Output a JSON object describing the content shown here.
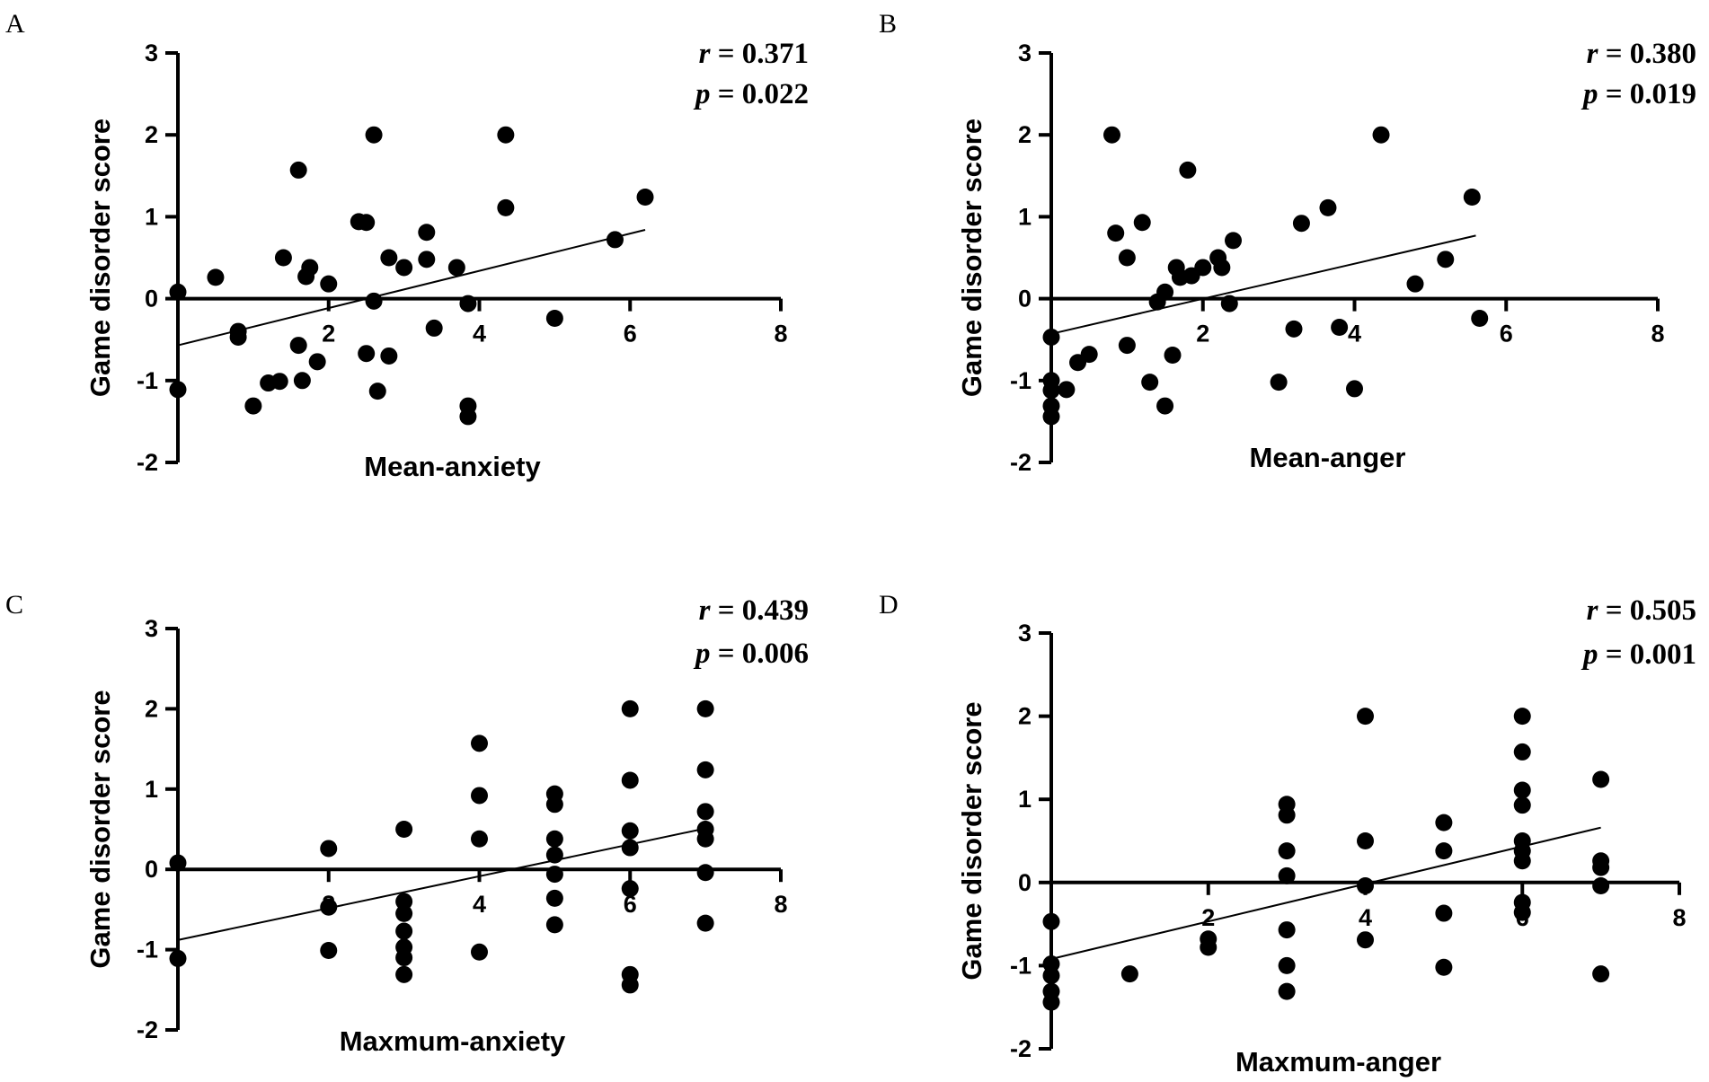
{
  "chart_data": [
    {
      "panel": "A",
      "type": "scatter",
      "xlabel": "Mean-anxiety",
      "ylabel": "Game disorder score",
      "xlim": [
        0,
        8
      ],
      "ylim": [
        -2,
        3
      ],
      "xticks": [
        "2",
        "4",
        "6",
        "8"
      ],
      "yticks": [
        "-2",
        "-1",
        "0",
        "1",
        "2",
        "3"
      ],
      "stats": {
        "r_label": "r",
        "r_value": "= 0.371",
        "p_label": "p",
        "p_value": "= 0.022"
      },
      "fit": {
        "x": [
          0,
          6.2
        ],
        "y": [
          -0.57,
          0.84
        ]
      },
      "points": [
        [
          0,
          0.08
        ],
        [
          0,
          -1.11
        ],
        [
          0.5,
          0.26
        ],
        [
          0.8,
          -0.4
        ],
        [
          0.8,
          -0.47
        ],
        [
          1.0,
          -1.31
        ],
        [
          1.2,
          -1.03
        ],
        [
          1.35,
          -1.01
        ],
        [
          1.4,
          0.5
        ],
        [
          1.6,
          -0.57
        ],
        [
          1.6,
          1.57
        ],
        [
          1.65,
          -1.0
        ],
        [
          1.7,
          0.27
        ],
        [
          1.75,
          0.38
        ],
        [
          1.85,
          -0.77
        ],
        [
          2.0,
          0.18
        ],
        [
          2.4,
          0.94
        ],
        [
          2.5,
          0.93
        ],
        [
          2.5,
          -0.67
        ],
        [
          2.6,
          2.0
        ],
        [
          2.6,
          -0.03
        ],
        [
          2.65,
          -1.13
        ],
        [
          2.8,
          -0.7
        ],
        [
          2.8,
          0.5
        ],
        [
          3.0,
          0.38
        ],
        [
          3.3,
          0.81
        ],
        [
          3.3,
          0.48
        ],
        [
          3.4,
          -0.36
        ],
        [
          3.7,
          0.38
        ],
        [
          3.85,
          -0.06
        ],
        [
          3.85,
          -1.31
        ],
        [
          3.85,
          -1.44
        ],
        [
          4.35,
          2.0
        ],
        [
          4.35,
          1.11
        ],
        [
          5.0,
          -0.24
        ],
        [
          5.8,
          0.72
        ],
        [
          6.2,
          1.24
        ]
      ]
    },
    {
      "panel": "B",
      "type": "scatter",
      "xlabel": "Mean-anger",
      "ylabel": "Game disorder score",
      "xlim": [
        0,
        8
      ],
      "ylim": [
        -2,
        3
      ],
      "xticks": [
        "2",
        "4",
        "6",
        "8"
      ],
      "yticks": [
        "-2",
        "-1",
        "0",
        "1",
        "2",
        "3"
      ],
      "stats": {
        "r_label": "r",
        "r_value": "= 0.380",
        "p_label": "p",
        "p_value": "= 0.019"
      },
      "fit": {
        "x": [
          0,
          5.6
        ],
        "y": [
          -0.43,
          0.77
        ]
      },
      "points": [
        [
          0,
          -0.47
        ],
        [
          0,
          -1.0
        ],
        [
          0,
          -1.12
        ],
        [
          0,
          -1.31
        ],
        [
          0,
          -1.44
        ],
        [
          0.2,
          -1.11
        ],
        [
          0.35,
          -0.78
        ],
        [
          0.5,
          -0.68
        ],
        [
          0.8,
          2.0
        ],
        [
          0.85,
          0.8
        ],
        [
          1.0,
          0.5
        ],
        [
          1.0,
          -0.57
        ],
        [
          1.2,
          0.93
        ],
        [
          1.3,
          -1.02
        ],
        [
          1.4,
          -0.04
        ],
        [
          1.5,
          0.08
        ],
        [
          1.5,
          -1.31
        ],
        [
          1.6,
          -0.69
        ],
        [
          1.65,
          0.38
        ],
        [
          1.7,
          0.26
        ],
        [
          1.8,
          1.57
        ],
        [
          1.85,
          0.28
        ],
        [
          2.0,
          0.38
        ],
        [
          2.2,
          0.5
        ],
        [
          2.25,
          0.38
        ],
        [
          2.35,
          -0.06
        ],
        [
          2.4,
          0.71
        ],
        [
          3.0,
          -1.02
        ],
        [
          3.2,
          -0.37
        ],
        [
          3.3,
          0.92
        ],
        [
          3.65,
          1.11
        ],
        [
          3.8,
          -0.35
        ],
        [
          4.0,
          -1.1
        ],
        [
          4.35,
          2.0
        ],
        [
          4.8,
          0.18
        ],
        [
          5.2,
          0.48
        ],
        [
          5.55,
          1.24
        ],
        [
          5.65,
          -0.24
        ]
      ]
    },
    {
      "panel": "C",
      "type": "scatter",
      "xlabel": "Maxmum-anxiety",
      "ylabel": "Game disorder score",
      "xlim": [
        0,
        8
      ],
      "ylim": [
        -2,
        3
      ],
      "xticks": [
        "2",
        "4",
        "6",
        "8"
      ],
      "yticks": [
        "-2",
        "-1",
        "0",
        "1",
        "2",
        "3"
      ],
      "stats": {
        "r_label": "r",
        "r_value": "= 0.439",
        "p_label": "p",
        "p_value": "= 0.006"
      },
      "fit": {
        "x": [
          0,
          7
        ],
        "y": [
          -0.88,
          0.51
        ]
      },
      "points": [
        [
          0,
          0.08
        ],
        [
          0,
          -1.11
        ],
        [
          2,
          0.26
        ],
        [
          2,
          -0.47
        ],
        [
          2,
          -1.01
        ],
        [
          3,
          0.5
        ],
        [
          3,
          -0.4
        ],
        [
          3,
          -0.55
        ],
        [
          3,
          -0.77
        ],
        [
          3,
          -0.97
        ],
        [
          3,
          -1.1
        ],
        [
          3,
          -1.31
        ],
        [
          4,
          1.57
        ],
        [
          4,
          0.92
        ],
        [
          4,
          0.38
        ],
        [
          4,
          -1.03
        ],
        [
          5,
          0.94
        ],
        [
          5,
          0.81
        ],
        [
          5,
          0.38
        ],
        [
          5,
          0.18
        ],
        [
          5,
          -0.06
        ],
        [
          5,
          -0.36
        ],
        [
          5,
          -0.69
        ],
        [
          6,
          2.0
        ],
        [
          6,
          1.11
        ],
        [
          6,
          0.48
        ],
        [
          6,
          0.27
        ],
        [
          6,
          -0.24
        ],
        [
          6,
          -1.31
        ],
        [
          6,
          -1.44
        ],
        [
          7,
          2.0
        ],
        [
          7,
          1.24
        ],
        [
          7,
          0.72
        ],
        [
          7,
          0.5
        ],
        [
          7,
          0.38
        ],
        [
          7,
          -0.04
        ],
        [
          7,
          -0.67
        ]
      ]
    },
    {
      "panel": "D",
      "type": "scatter",
      "xlabel": "Maxmum-anger",
      "ylabel": "Game disorder score",
      "xlim": [
        0,
        8
      ],
      "ylim": [
        -2,
        3
      ],
      "xticks": [
        "2",
        "4",
        "6",
        "8"
      ],
      "yticks": [
        "-2",
        "-1",
        "0",
        "1",
        "2",
        "3"
      ],
      "stats": {
        "r_label": "r",
        "r_value": "= 0.505",
        "p_label": "p",
        "p_value": "= 0.001"
      },
      "fit": {
        "x": [
          0,
          7
        ],
        "y": [
          -0.92,
          0.66
        ]
      },
      "points": [
        [
          0,
          -0.47
        ],
        [
          0,
          -0.98
        ],
        [
          0,
          -1.12
        ],
        [
          0,
          -1.31
        ],
        [
          0,
          -1.44
        ],
        [
          1,
          -1.1
        ],
        [
          2,
          -0.68
        ],
        [
          2,
          -0.78
        ],
        [
          3,
          0.94
        ],
        [
          3,
          0.81
        ],
        [
          3,
          0.38
        ],
        [
          3,
          0.08
        ],
        [
          3,
          -0.57
        ],
        [
          3,
          -1.0
        ],
        [
          3,
          -1.31
        ],
        [
          4,
          2.0
        ],
        [
          4,
          0.5
        ],
        [
          4,
          -0.04
        ],
        [
          4,
          -0.69
        ],
        [
          5,
          0.72
        ],
        [
          5,
          0.38
        ],
        [
          5,
          -0.37
        ],
        [
          5,
          -1.02
        ],
        [
          6,
          2.0
        ],
        [
          6,
          1.57
        ],
        [
          6,
          1.11
        ],
        [
          6,
          0.93
        ],
        [
          6,
          0.5
        ],
        [
          6,
          0.38
        ],
        [
          6,
          0.26
        ],
        [
          6,
          -0.24
        ],
        [
          6,
          -0.36
        ],
        [
          7,
          1.24
        ],
        [
          7,
          0.26
        ],
        [
          7,
          0.18
        ],
        [
          7,
          -0.04
        ],
        [
          7,
          -1.1
        ]
      ]
    }
  ]
}
